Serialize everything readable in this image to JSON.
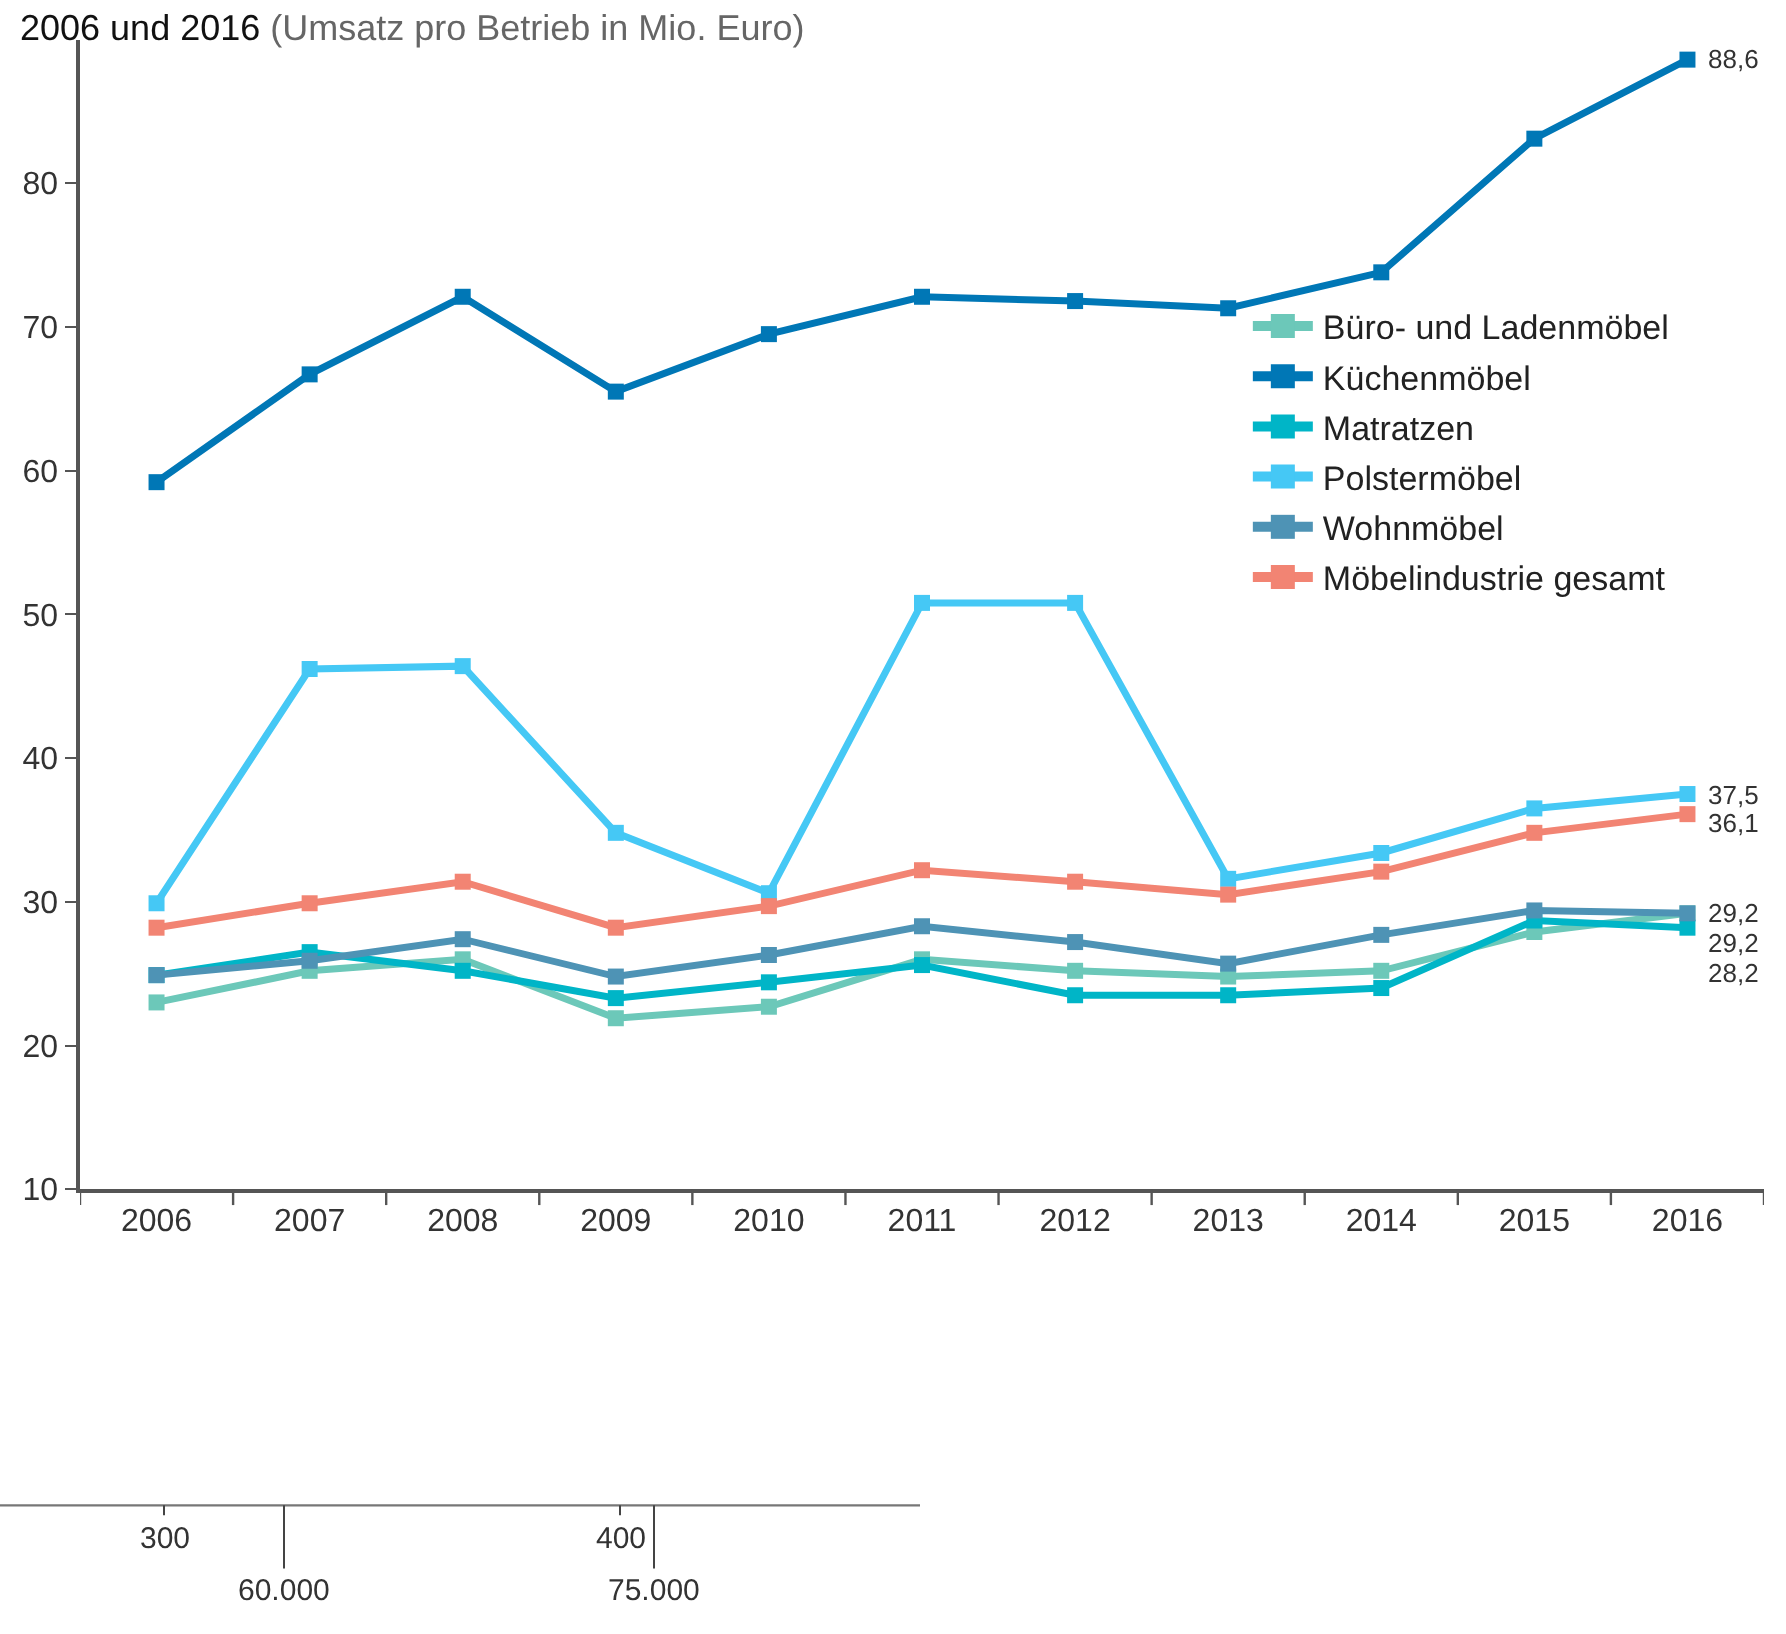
{
  "chart_data": [
    {
      "type": "line",
      "title": "2006 und 2016",
      "subtitle": "(Umsatz pro Betrieb in Mio. Euro)",
      "categories": [
        "2006",
        "2007",
        "2008",
        "2009",
        "2010",
        "2011",
        "2012",
        "2013",
        "2014",
        "2015",
        "2016"
      ],
      "series": [
        {
          "name": "Büro- und Ladenmöbel",
          "color": "#6cc8b9",
          "values": [
            23.0,
            25.2,
            26.0,
            21.9,
            22.7,
            26.0,
            25.2,
            24.8,
            25.2,
            27.9,
            29.2
          ],
          "value_labels": [
            null,
            null,
            null,
            null,
            null,
            null,
            null,
            null,
            null,
            null,
            "29,2"
          ]
        },
        {
          "name": "Küchenmöbel",
          "color": "#0077b6",
          "values": [
            59.2,
            66.7,
            72.1,
            65.5,
            69.5,
            72.1,
            71.8,
            71.3,
            73.8,
            83.1,
            88.6
          ],
          "value_labels": [
            null,
            null,
            null,
            null,
            null,
            null,
            null,
            null,
            null,
            null,
            "88,6"
          ]
        },
        {
          "name": "Matratzen",
          "color": "#00b5c7",
          "values": [
            24.9,
            26.5,
            25.2,
            23.3,
            24.4,
            25.6,
            23.5,
            23.5,
            24.0,
            28.7,
            28.2
          ],
          "value_labels": [
            null,
            null,
            null,
            null,
            null,
            null,
            null,
            null,
            null,
            null,
            "28,2"
          ]
        },
        {
          "name": "Polstermöbel",
          "color": "#45c8f5",
          "values": [
            29.9,
            46.2,
            46.4,
            34.8,
            30.6,
            50.8,
            50.8,
            31.6,
            33.4,
            36.5,
            37.5
          ],
          "value_labels": [
            null,
            null,
            null,
            null,
            null,
            null,
            null,
            null,
            null,
            null,
            "37,5"
          ]
        },
        {
          "name": "Wohnmöbel",
          "color": "#4e93b5",
          "values": [
            24.9,
            25.9,
            27.4,
            24.8,
            26.3,
            28.3,
            27.2,
            25.7,
            27.7,
            29.4,
            29.2
          ],
          "value_labels": [
            null,
            null,
            null,
            null,
            null,
            null,
            null,
            null,
            null,
            null,
            "29,2"
          ]
        },
        {
          "name": "Möbelindustrie gesamt",
          "color": "#f28473",
          "values": [
            28.2,
            29.9,
            31.4,
            28.2,
            29.7,
            32.2,
            31.4,
            30.5,
            32.1,
            34.8,
            36.1
          ],
          "value_labels": [
            null,
            null,
            null,
            null,
            null,
            null,
            null,
            null,
            null,
            null,
            "36,1"
          ]
        }
      ],
      "ylim": [
        10,
        90
      ],
      "yticks": [
        10,
        20,
        30,
        40,
        50,
        60,
        70,
        80
      ],
      "legend": "right",
      "marker": "square",
      "line_style": "solid"
    },
    {
      "type": "other",
      "annotations": [
        "300",
        "60.000",
        "400",
        "75.000"
      ]
    }
  ]
}
